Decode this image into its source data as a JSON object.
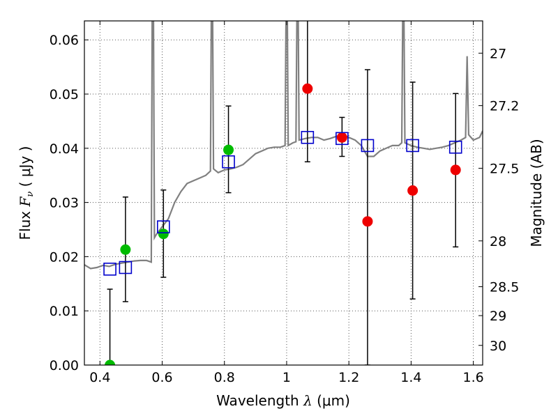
{
  "chart_data": {
    "type": "scatter",
    "xlabel_prefix": "Wavelength  ",
    "xlabel_symbol": "λ",
    "xlabel_unit": " (μm)",
    "ylabel_prefix": "Flux  ",
    "ylabel_symbol": "F",
    "ylabel_sub": "ν",
    "ylabel_unit": "  ( μJy )",
    "y2label": "Magnitude (AB)",
    "xlim": [
      0.35,
      1.63
    ],
    "ylim": [
      0.0,
      0.0635
    ],
    "grid": true,
    "x_ticks": [
      {
        "v": 0.4,
        "label": "0.4"
      },
      {
        "v": 0.6,
        "label": "0.6"
      },
      {
        "v": 0.8,
        "label": "0.8"
      },
      {
        "v": 1.0,
        "label": "1"
      },
      {
        "v": 1.2,
        "label": "1.2"
      },
      {
        "v": 1.4,
        "label": "1.4"
      },
      {
        "v": 1.6,
        "label": "1.6"
      }
    ],
    "y_ticks": [
      {
        "v": 0.0,
        "label": "0.00"
      },
      {
        "v": 0.01,
        "label": "0.01"
      },
      {
        "v": 0.02,
        "label": "0.02"
      },
      {
        "v": 0.03,
        "label": "0.03"
      },
      {
        "v": 0.04,
        "label": "0.04"
      },
      {
        "v": 0.05,
        "label": "0.05"
      },
      {
        "v": 0.06,
        "label": "0.06"
      }
    ],
    "mag_ticks": [
      {
        "mag": 27.0,
        "label": "27"
      },
      {
        "mag": 27.2,
        "label": "27.2"
      },
      {
        "mag": 27.5,
        "label": "27.5"
      },
      {
        "mag": 28.0,
        "label": "28"
      },
      {
        "mag": 28.5,
        "label": "28.5"
      },
      {
        "mag": 29.0,
        "label": "29"
      },
      {
        "mag": 30.0,
        "label": "30"
      }
    ],
    "colors": {
      "model": "#808080",
      "green": "#00bb00",
      "red": "#ee0000",
      "blue": "#0000cc",
      "errorbar": "#000000",
      "grid": "#555555"
    },
    "model_spectrum": {
      "name": "SED model",
      "x": [
        0.35,
        0.37,
        0.39,
        0.41,
        0.43,
        0.45,
        0.47,
        0.49,
        0.51,
        0.53,
        0.55,
        0.565,
        0.568,
        0.572,
        0.575,
        0.58,
        0.6,
        0.62,
        0.64,
        0.66,
        0.68,
        0.7,
        0.72,
        0.74,
        0.755,
        0.758,
        0.762,
        0.765,
        0.78,
        0.8,
        0.82,
        0.84,
        0.86,
        0.88,
        0.9,
        0.92,
        0.94,
        0.96,
        0.98,
        0.995,
        0.998,
        1.002,
        1.005,
        1.02,
        1.03,
        1.033,
        1.037,
        1.04,
        1.06,
        1.08,
        1.1,
        1.12,
        1.14,
        1.16,
        1.18,
        1.2,
        1.22,
        1.24,
        1.26,
        1.28,
        1.3,
        1.32,
        1.34,
        1.36,
        1.37,
        1.373,
        1.377,
        1.38,
        1.4,
        1.42,
        1.44,
        1.46,
        1.48,
        1.5,
        1.52,
        1.54,
        1.56,
        1.575,
        1.58,
        1.585,
        1.6,
        1.62,
        1.63
      ],
      "y": [
        0.0185,
        0.0178,
        0.018,
        0.0184,
        0.0182,
        0.0186,
        0.0188,
        0.019,
        0.0192,
        0.0193,
        0.0193,
        0.019,
        0.065,
        0.065,
        0.0235,
        0.024,
        0.0255,
        0.027,
        0.03,
        0.032,
        0.0335,
        0.034,
        0.0345,
        0.035,
        0.0358,
        0.065,
        0.065,
        0.0362,
        0.0355,
        0.036,
        0.0362,
        0.0365,
        0.037,
        0.038,
        0.039,
        0.0395,
        0.04,
        0.0402,
        0.0402,
        0.0405,
        0.065,
        0.065,
        0.0405,
        0.041,
        0.0412,
        0.065,
        0.065,
        0.0415,
        0.0418,
        0.042,
        0.042,
        0.0415,
        0.0418,
        0.0422,
        0.0425,
        0.042,
        0.0415,
        0.0405,
        0.0385,
        0.0385,
        0.0395,
        0.04,
        0.0405,
        0.0405,
        0.041,
        0.065,
        0.065,
        0.041,
        0.0405,
        0.0402,
        0.04,
        0.0398,
        0.04,
        0.0402,
        0.0405,
        0.041,
        0.0415,
        0.042,
        0.057,
        0.0425,
        0.0415,
        0.042,
        0.0432
      ]
    },
    "series": [
      {
        "name": "green points",
        "marker": "circle",
        "color": "green",
        "points": [
          {
            "x": 0.432,
            "y": 0.0
          },
          {
            "x": 0.482,
            "y": 0.0213
          },
          {
            "x": 0.604,
            "y": 0.0242
          },
          {
            "x": 0.813,
            "y": 0.0397
          }
        ]
      },
      {
        "name": "red points",
        "marker": "circle",
        "color": "red",
        "points": [
          {
            "x": 1.067,
            "y": 0.051
          },
          {
            "x": 1.178,
            "y": 0.042
          },
          {
            "x": 1.26,
            "y": 0.0265
          },
          {
            "x": 1.405,
            "y": 0.0322
          },
          {
            "x": 1.543,
            "y": 0.036
          }
        ]
      },
      {
        "name": "model photometry",
        "marker": "open-square",
        "color": "blue",
        "points": [
          {
            "x": 0.432,
            "y": 0.0177,
            "lo": 0.0,
            "hi": 0.014
          },
          {
            "x": 0.482,
            "y": 0.018,
            "lo": 0.0117,
            "hi": 0.031
          },
          {
            "x": 0.604,
            "y": 0.0255,
            "lo": 0.0162,
            "hi": 0.0323
          },
          {
            "x": 0.813,
            "y": 0.0375,
            "lo": 0.0318,
            "hi": 0.0478
          },
          {
            "x": 1.067,
            "y": 0.042,
            "lo": 0.0375,
            "hi": 0.064
          },
          {
            "x": 1.178,
            "y": 0.0418,
            "lo": 0.0385,
            "hi": 0.0457
          },
          {
            "x": 1.26,
            "y": 0.0405,
            "lo": 0.0,
            "hi": 0.0545
          },
          {
            "x": 1.405,
            "y": 0.0405,
            "lo": 0.0122,
            "hi": 0.0522
          },
          {
            "x": 1.543,
            "y": 0.0402,
            "lo": 0.0218,
            "hi": 0.0501
          }
        ]
      }
    ]
  }
}
